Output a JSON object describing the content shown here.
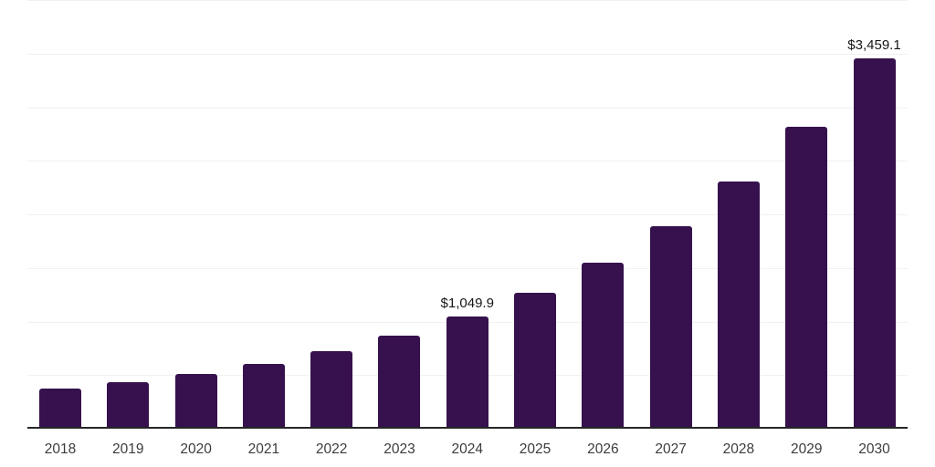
{
  "chart_data": {
    "type": "bar",
    "title": "",
    "xlabel": "",
    "ylabel": "",
    "categories": [
      "2018",
      "2019",
      "2020",
      "2021",
      "2022",
      "2023",
      "2024",
      "2025",
      "2026",
      "2027",
      "2028",
      "2029",
      "2030"
    ],
    "values": [
      375,
      432,
      512,
      604,
      727,
      868,
      1049.9,
      1272,
      1546,
      1886,
      2305,
      2818,
      3459.1
    ],
    "data_labels": [
      {
        "index": 6,
        "text": "$1,049.9"
      },
      {
        "index": 12,
        "text": "$3,459.1"
      }
    ],
    "ylim": [
      0,
      4000
    ],
    "gridline_step": 500,
    "grid": "horizontal-only",
    "legend": "none",
    "y_tick_labels_visible": false,
    "colors": {
      "bar": "#36114D",
      "axis_line": "#262626",
      "gridline": "#f1f1f1",
      "data_label_text": "#161616",
      "tick_label_text": "#3c3c3c",
      "background": "#ffffff"
    }
  }
}
